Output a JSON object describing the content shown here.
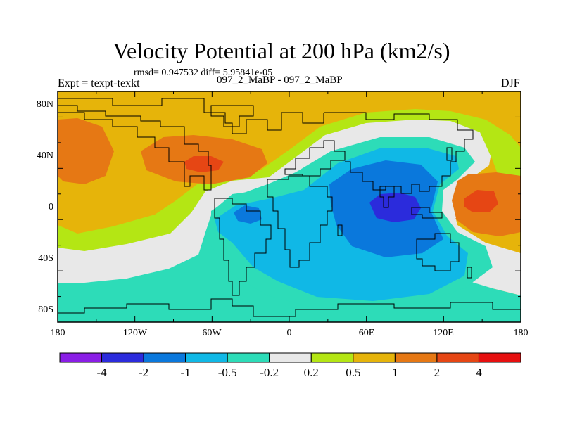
{
  "title": "Velocity Potential at 200 hPa (km2/s)",
  "stats_line": "rmsd= 0.947532 diff= 5.95841e-05",
  "experiment": "Expt = texpt-texkt",
  "runs": "097_2_MaBP - 097_2_MaBP",
  "season": "DJF",
  "lat_labels": [
    "80N",
    "40N",
    "0",
    "40S",
    "80S"
  ],
  "lon_labels": [
    "180",
    "120W",
    "60W",
    "0",
    "60E",
    "120E",
    "180"
  ],
  "colorbar": {
    "labels": [
      "-4",
      "-2",
      "-1",
      "-0.5",
      "-0.2",
      "0.2",
      "0.5",
      "1",
      "2",
      "4"
    ],
    "colors": [
      "#8a1ee6",
      "#2b2bdc",
      "#0a78dc",
      "#10b8e6",
      "#2ddcb8",
      "#e8e8e8",
      "#b4e614",
      "#e6b40a",
      "#e67814",
      "#e64614",
      "#e60f0f"
    ]
  },
  "field_colors": {
    "lt_neg2": "#2b2bdc",
    "neg2_neg1": "#0a78dc",
    "neg1_neg05": "#10b8e6",
    "neg05_neg02": "#2ddcb8",
    "neg02_02": "#e8e8e8",
    "p02_05": "#b4e614",
    "p05_1": "#e6b40a",
    "p1_2": "#e67814",
    "p2_4": "#e64614"
  }
}
